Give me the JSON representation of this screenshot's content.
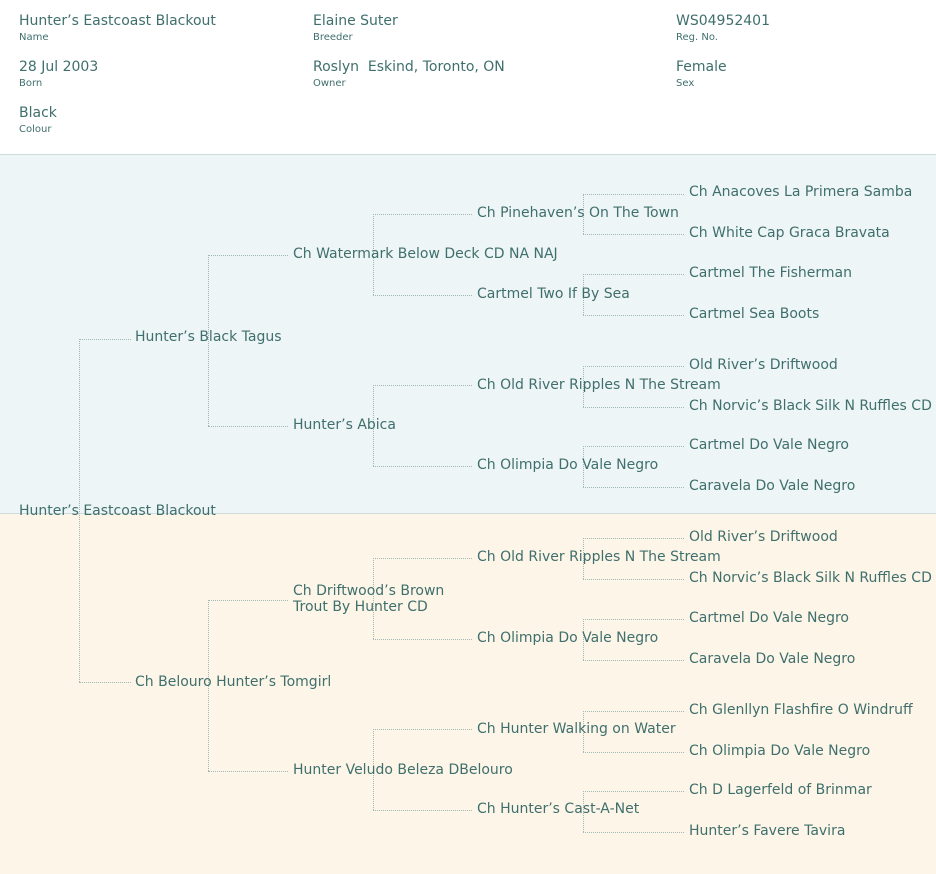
{
  "header": {
    "name": {
      "value": "Hunter’s Eastcoast Blackout",
      "label": "Name"
    },
    "breeder": {
      "value": "Elaine Suter",
      "label": "Breeder"
    },
    "reg_no": {
      "value": "WS04952401",
      "label": "Reg. No."
    },
    "born": {
      "value": "28 Jul 2003",
      "label": "Born"
    },
    "owner": {
      "value": "Roslyn  Eskind, Toronto, ON",
      "label": "Owner"
    },
    "sex": {
      "value": "Female",
      "label": "Sex"
    },
    "colour": {
      "value": "Black",
      "label": "Colour"
    }
  },
  "pedigree": {
    "subject": "Hunter’s Eastcoast Blackout",
    "sire": "Hunter’s Black Tagus",
    "dam": "Ch Belouro Hunter’s Tomgirl",
    "sire_sire": "Ch Watermark Below Deck CD NA NAJ",
    "sire_dam": "Hunter’s Abica",
    "dam_sire": "Ch Driftwood’s Brown Trout By Hunter CD",
    "dam_dam": "Hunter Veludo Beleza DBelouro",
    "gen3": [
      "Ch Pinehaven’s On The Town",
      "Cartmel Two If By Sea",
      "Ch Old River Ripples N The Stream",
      "Ch Olimpia Do Vale Negro",
      "Ch Old River Ripples N The Stream",
      "Ch Olimpia Do Vale Negro",
      "Ch Hunter Walking on Water",
      "Ch Hunter’s Cast-A-Net"
    ],
    "gen4": [
      "Ch Anacoves La Primera Samba",
      "Ch White Cap Graca Bravata",
      "Cartmel The Fisherman",
      "Cartmel Sea Boots",
      "Old River’s Driftwood",
      "Ch Norvic’s Black Silk N Ruffles CD",
      "Cartmel Do Vale Negro",
      "Caravela Do Vale Negro",
      "Old River’s Driftwood",
      "Ch Norvic’s Black Silk N Ruffles CD",
      "Cartmel Do Vale Negro",
      "Caravela Do Vale Negro",
      "Ch Glenllyn Flashfire O Windruff",
      "Ch Olimpia Do Vale Negro",
      "Ch D Lagerfeld of Brinmar",
      "Hunter’s Favere Tavira"
    ]
  }
}
